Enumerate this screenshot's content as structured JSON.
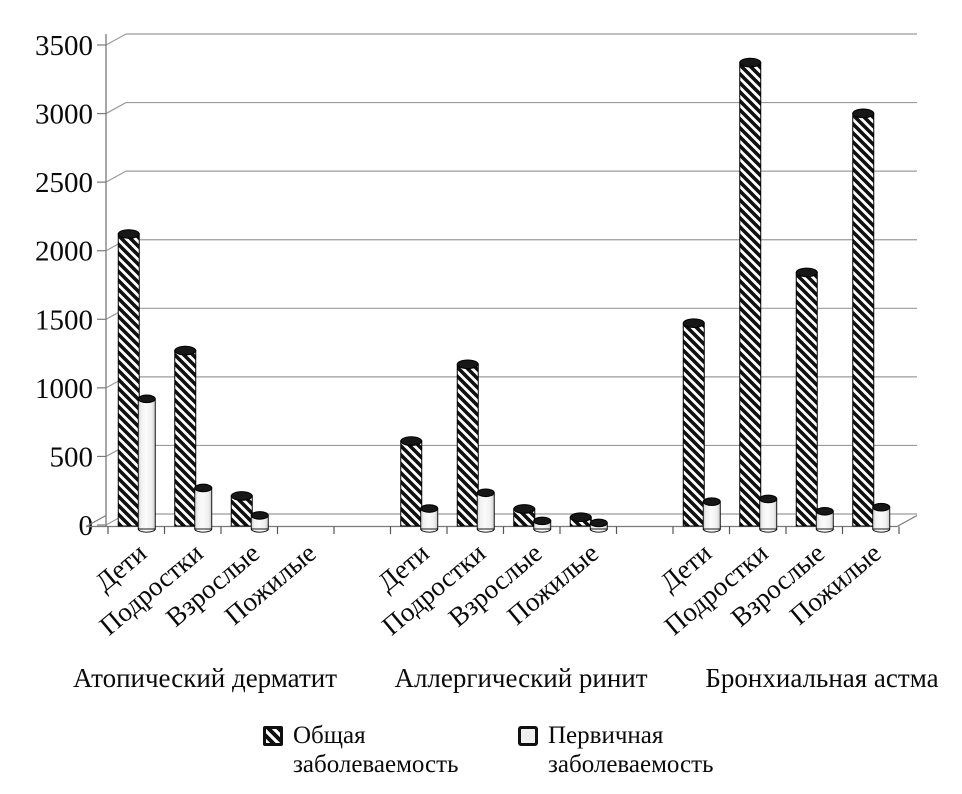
{
  "chart_data": {
    "type": "bar",
    "style": "3d-cylinder",
    "title": "",
    "background": "#ffffff",
    "groups": [
      {
        "label": "Атопический дерматит"
      },
      {
        "label": "Аллергический ринит"
      },
      {
        "label": "Бронхиальная астма"
      }
    ],
    "categories": [
      "Дети",
      "Подростки",
      "Взрослые",
      "Пожилые"
    ],
    "series": [
      {
        "name": "Общая заболеваемость",
        "pattern": "diagonal-hatch",
        "values": [
          [
            2100,
            1250,
            190,
            0
          ],
          [
            590,
            1150,
            95,
            35
          ],
          [
            1450,
            3350,
            1820,
            2980
          ]
        ]
      },
      {
        "name": "Первичная заболеваемость",
        "pattern": "light-solid",
        "values": [
          [
            920,
            270,
            70,
            0
          ],
          [
            120,
            235,
            30,
            15
          ],
          [
            170,
            190,
            100,
            130
          ]
        ]
      }
    ],
    "y_axis": {
      "min": 0,
      "max": 3500,
      "step": 500,
      "ticks": [
        3500,
        3000,
        2500,
        2000,
        1500,
        1000,
        500,
        0
      ]
    },
    "grid": true,
    "legend_position": "bottom",
    "colors": {
      "hatch": "#101010",
      "light_fill": "#f1f1f1",
      "outline": "#000000",
      "cylinder_top": "#171717",
      "gridline": "#9b9b9b",
      "axis": "#7a7a7a",
      "text": "#0a0a0a"
    }
  }
}
